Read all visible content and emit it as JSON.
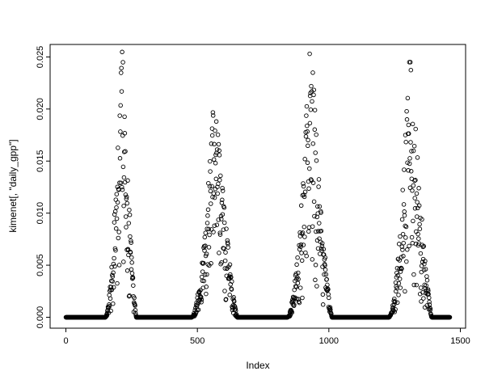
{
  "figure": {
    "background": "#ffffff",
    "point_color": "#000000",
    "marker_style": "open-circle"
  },
  "chart_data": {
    "type": "scatter",
    "title": "",
    "xlabel": "Index",
    "ylabel": "kimenet[, \"daily_gpp\"]",
    "xlim": [
      -60,
      1520
    ],
    "ylim": [
      -0.00105,
      0.0262
    ],
    "x_ticks": [
      0,
      500,
      1000,
      1500
    ],
    "x_tick_labels": [
      "0",
      "500",
      "1000",
      "1500"
    ],
    "y_ticks": [
      0,
      0.005,
      0.01,
      0.015,
      0.02,
      0.025
    ],
    "y_tick_labels": [
      "0.000",
      "0.005",
      "0.010",
      "0.015",
      "0.020",
      "0.025"
    ],
    "grid": false,
    "legend": null,
    "n_points_total": 1460,
    "zero_baseline_value": 0.0,
    "zero_runs": [
      [
        0,
        150
      ],
      [
        268,
        478
      ],
      [
        652,
        842
      ],
      [
        1012,
        1228
      ],
      [
        1392,
        1460
      ]
    ],
    "peaks": [
      {
        "start": 150,
        "center": 212,
        "end": 268,
        "peak_value": 0.0255
      },
      {
        "start": 478,
        "center": 565,
        "end": 652,
        "peak_value": 0.0205
      },
      {
        "start": 842,
        "center": 930,
        "end": 1012,
        "peak_value": 0.0253
      },
      {
        "start": 1228,
        "center": 1308,
        "end": 1392,
        "peak_value": 0.0245
      }
    ],
    "seed": 42
  }
}
